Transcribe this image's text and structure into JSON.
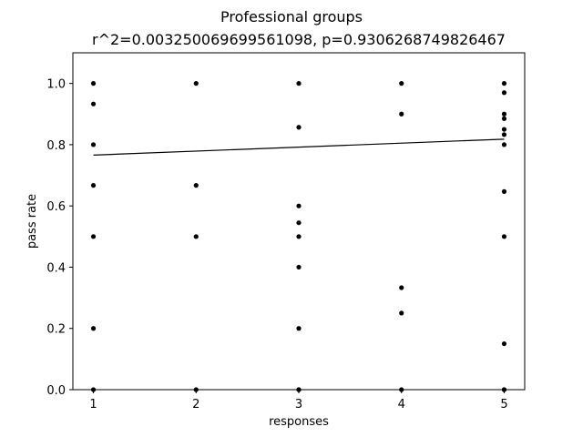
{
  "chart_data": {
    "type": "scatter",
    "title": "Professional groups",
    "subtitle": "r^2=0.003250069699561098, p=0.9306268749826467",
    "xlabel": "responses",
    "ylabel": "pass rate",
    "xlim": [
      0.8,
      5.2
    ],
    "ylim": [
      0.0,
      1.1
    ],
    "xticks": [
      1,
      2,
      3,
      4,
      5
    ],
    "xtick_labels": [
      "1",
      "2",
      "3",
      "4",
      "5"
    ],
    "yticks": [
      0.0,
      0.2,
      0.4,
      0.6,
      0.8,
      1.0
    ],
    "ytick_labels": [
      "0.0",
      "0.2",
      "0.4",
      "0.6",
      "0.8",
      "1.0"
    ],
    "grid": false,
    "legend": "none",
    "marker_color": "#000000",
    "series": [
      {
        "x": [
          1,
          1,
          1,
          1,
          1,
          1,
          1,
          2,
          2,
          2,
          2,
          3,
          3,
          3,
          3,
          3,
          3,
          3,
          3,
          3,
          4,
          4,
          4,
          4,
          4,
          5,
          5,
          5,
          5,
          5,
          5,
          5,
          5,
          5,
          5,
          5,
          5
        ],
        "y": [
          1.0,
          0.933,
          0.8,
          0.667,
          0.5,
          0.2,
          0.0,
          1.0,
          0.667,
          0.5,
          0.0,
          1.0,
          0.857,
          0.6,
          0.545,
          0.5,
          0.4,
          0.2,
          0.0,
          0.0,
          1.0,
          0.9,
          0.333,
          0.25,
          0.0,
          1.0,
          0.97,
          0.9,
          0.885,
          0.85,
          0.833,
          0.8,
          0.647,
          0.5,
          0.15,
          0.0,
          0.0
        ]
      }
    ],
    "fit_line": {
      "x": [
        1,
        5
      ],
      "y": [
        0.766,
        0.818
      ],
      "color": "#000000"
    }
  }
}
